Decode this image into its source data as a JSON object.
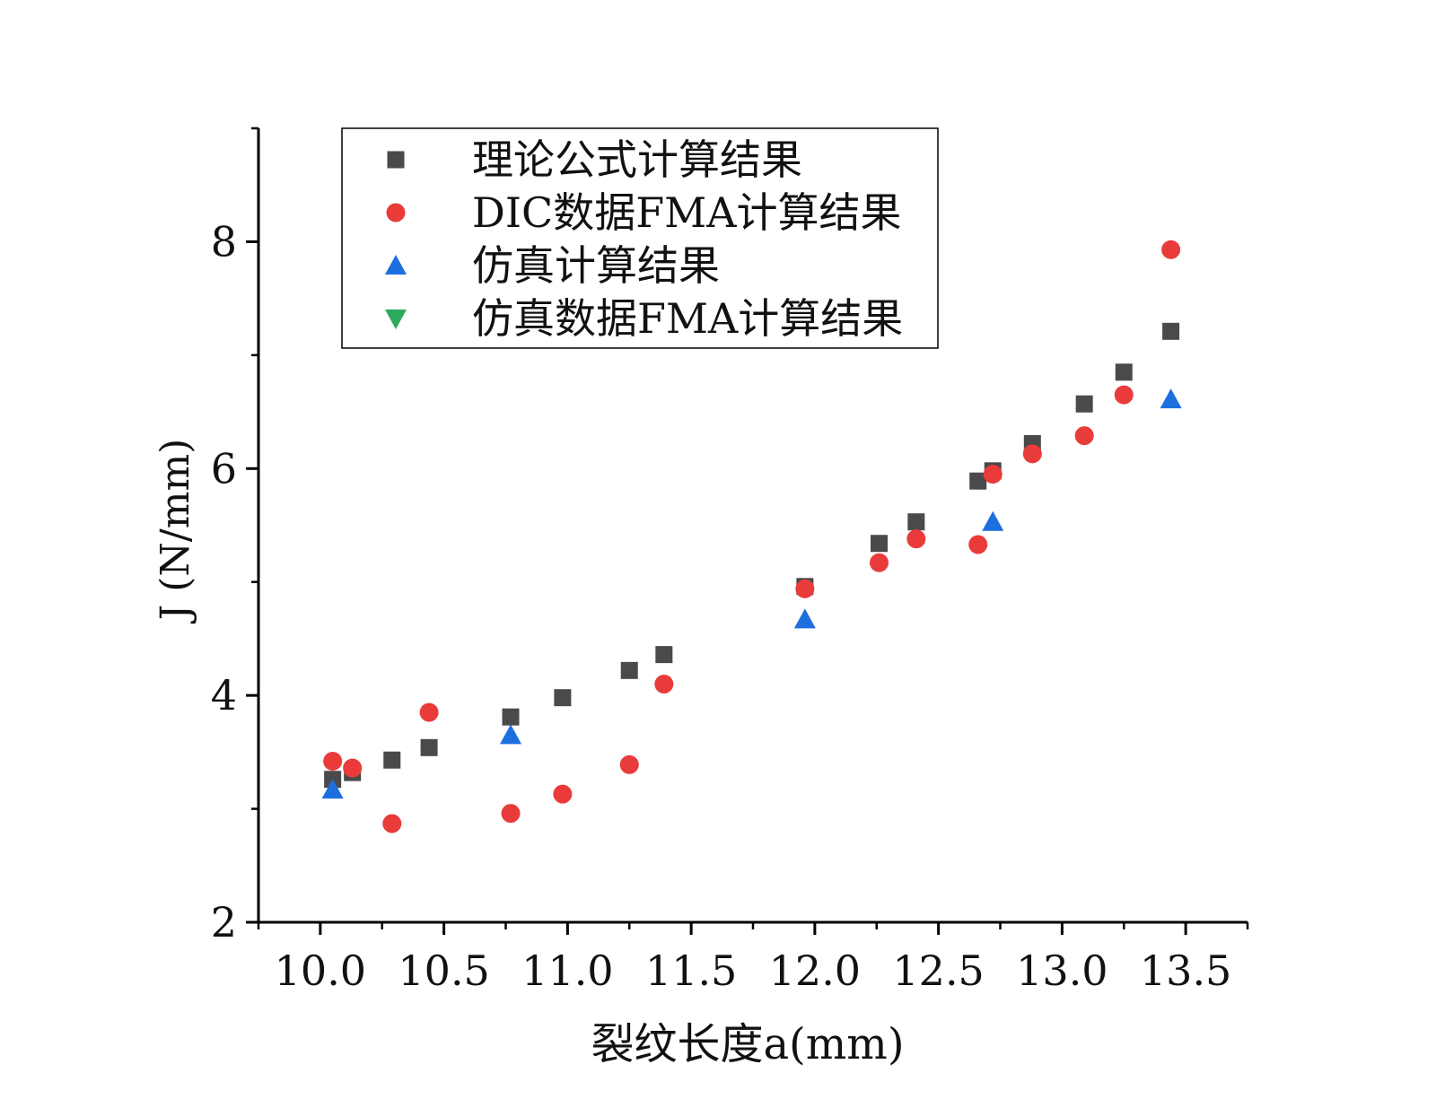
{
  "chart_data": {
    "type": "scatter",
    "title": "",
    "xlabel": "裂纹长度a(mm)",
    "ylabel": "J (N/mm)",
    "xlim": [
      9.75,
      13.75
    ],
    "ylim": [
      2,
      9
    ],
    "x_ticks": [
      10.0,
      10.5,
      11.0,
      11.5,
      12.0,
      12.5,
      13.0,
      13.5
    ],
    "x_tick_labels": [
      "10.0",
      "10.5",
      "11.0",
      "11.5",
      "12.0",
      "12.5",
      "13.0",
      "13.5"
    ],
    "y_ticks": [
      2,
      4,
      6,
      8
    ],
    "y_tick_labels": [
      "2",
      "4",
      "6",
      "8"
    ],
    "legend_position": "top-left",
    "grid": false,
    "series": [
      {
        "name": "理论公式计算结果",
        "marker": "square",
        "color": "#4a4a4a",
        "x": [
          10.05,
          10.13,
          10.29,
          10.44,
          10.77,
          10.98,
          11.25,
          11.39,
          11.96,
          12.26,
          12.41,
          12.66,
          12.72,
          12.88,
          13.09,
          13.25,
          13.44
        ],
        "y": [
          3.26,
          3.32,
          3.43,
          3.54,
          3.81,
          3.98,
          4.22,
          4.36,
          4.96,
          5.34,
          5.53,
          5.89,
          5.98,
          6.22,
          6.57,
          6.85,
          7.21
        ]
      },
      {
        "name": "DIC数据FMA计算结果",
        "marker": "circle",
        "color": "#ea3b3b",
        "x": [
          10.05,
          10.13,
          10.29,
          10.44,
          10.77,
          10.98,
          11.25,
          11.39,
          11.96,
          12.26,
          12.41,
          12.66,
          12.72,
          12.88,
          13.09,
          13.25,
          13.44
        ],
        "y": [
          3.42,
          3.36,
          2.87,
          3.85,
          2.96,
          3.13,
          3.39,
          4.1,
          4.94,
          5.17,
          5.38,
          5.33,
          5.95,
          6.13,
          6.29,
          6.65,
          7.93
        ]
      },
      {
        "name": "仿真计算结果",
        "marker": "triangle-up",
        "color": "#1d6fe0",
        "x": [
          10.05,
          10.77,
          11.96,
          12.72,
          13.44
        ],
        "y": [
          3.17,
          3.65,
          4.67,
          5.53,
          6.61
        ]
      },
      {
        "name": "仿真数据FMA计算结果",
        "marker": "triangle-down",
        "color": "#2eaa5c",
        "x": [],
        "y": []
      }
    ]
  }
}
